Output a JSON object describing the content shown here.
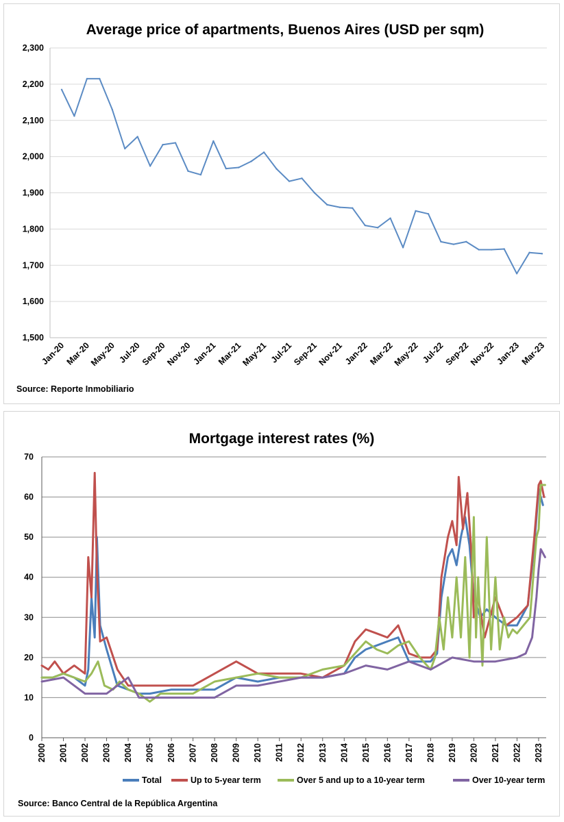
{
  "chart_data": [
    {
      "type": "line",
      "title": "Average price of apartments, Buenos Aires (USD per sqm)",
      "source": "Source: Reporte Inmobiliario",
      "ylim": [
        1500,
        2300
      ],
      "yticks": [
        "1,500",
        "1,600",
        "1,700",
        "1,800",
        "1,900",
        "2,000",
        "2,100",
        "2,200",
        "2,300"
      ],
      "ytick_values": [
        1500,
        1600,
        1700,
        1800,
        1900,
        2000,
        2100,
        2200,
        2300
      ],
      "xtick_labels": [
        "Jan-20",
        "Mar-20",
        "May-20",
        "Jul-20",
        "Sep-20",
        "Nov-20",
        "Jan-21",
        "Mar-21",
        "May-21",
        "Jul-21",
        "Sep-21",
        "Nov-21",
        "Jan-22",
        "Mar-22",
        "May-22",
        "Jul-22",
        "Sep-22",
        "Nov-22",
        "Jan-23",
        "Mar-23"
      ],
      "grid": true,
      "series": [
        {
          "name": "Average price",
          "color": "#5B8BC4",
          "x": [
            "Jan-20",
            "Feb-20",
            "Mar-20",
            "Apr-20",
            "May-20",
            "Jun-20",
            "Jul-20",
            "Aug-20",
            "Sep-20",
            "Oct-20",
            "Nov-20",
            "Dec-20",
            "Jan-21",
            "Feb-21",
            "Mar-21",
            "Apr-21",
            "May-21",
            "Jun-21",
            "Jul-21",
            "Aug-21",
            "Sep-21",
            "Oct-21",
            "Nov-21",
            "Dec-21",
            "Jan-22",
            "Feb-22",
            "Mar-22",
            "Apr-22",
            "May-22",
            "Jun-22",
            "Jul-22",
            "Aug-22",
            "Sep-22",
            "Oct-22",
            "Nov-22",
            "Dec-22",
            "Jan-23",
            "Feb-23",
            "Mar-23"
          ],
          "values": [
            2185,
            2112,
            2215,
            2215,
            2130,
            2022,
            2055,
            1974,
            2033,
            2038,
            1960,
            1950,
            2043,
            1967,
            1970,
            1987,
            2012,
            1966,
            1932,
            1940,
            1900,
            1867,
            1860,
            1858,
            1810,
            1804,
            1830,
            1749,
            1850,
            1842,
            1765,
            1758,
            1765,
            1743,
            1743,
            1745,
            1677,
            1735,
            1732
          ]
        }
      ]
    },
    {
      "type": "line",
      "title": "Mortgage interest rates (%)",
      "source": "Source: Banco Central de la República Argentina",
      "ylim": [
        0,
        70
      ],
      "yticks": [
        "0",
        "10",
        "20",
        "30",
        "40",
        "50",
        "60",
        "70"
      ],
      "ytick_values": [
        0,
        10,
        20,
        30,
        40,
        50,
        60,
        70
      ],
      "xtick_labels": [
        "2000",
        "2001",
        "2002",
        "2003",
        "2004",
        "2005",
        "2006",
        "2007",
        "2008",
        "2009",
        "2010",
        "2011",
        "2012",
        "2013",
        "2014",
        "2015",
        "2016",
        "2017",
        "2018",
        "2019",
        "2020",
        "2021",
        "2022",
        "2023"
      ],
      "xlim": [
        2000,
        2023.35
      ],
      "grid": true,
      "legend": "bottom",
      "series": [
        {
          "name": "Total",
          "color": "#4A7EBB",
          "x": [
            2000,
            2000.5,
            2001,
            2001.5,
            2002,
            2002.15,
            2002.3,
            2002.45,
            2002.55,
            2002.7,
            2003,
            2003.5,
            2004,
            2004.5,
            2005,
            2006,
            2007,
            2008,
            2009,
            2010,
            2011,
            2012,
            2013,
            2014,
            2014.5,
            2015,
            2015.5,
            2016,
            2016.5,
            2017,
            2017.5,
            2018,
            2018.3,
            2018.5,
            2018.8,
            2019,
            2019.2,
            2019.4,
            2019.6,
            2019.8,
            2020,
            2020.3,
            2020.6,
            2021,
            2021.5,
            2022,
            2022.5,
            2022.8,
            2023,
            2023.2
          ],
          "values": [
            15,
            15,
            16,
            15,
            13,
            17,
            35,
            25,
            50,
            28,
            22,
            13,
            12,
            11,
            11,
            12,
            12,
            12,
            15,
            14,
            15,
            15,
            15,
            16,
            20,
            22,
            23,
            24,
            25,
            19,
            19,
            19,
            21,
            35,
            45,
            47,
            43,
            50,
            55,
            48,
            35,
            30,
            32,
            30,
            28,
            28,
            33,
            48,
            62,
            58
          ]
        },
        {
          "name": "Up to 5-year term",
          "color": "#C0504D",
          "x": [
            2000,
            2000.3,
            2000.6,
            2001,
            2001.5,
            2002,
            2002.15,
            2002.3,
            2002.45,
            2002.55,
            2002.7,
            2003,
            2003.5,
            2004,
            2004.5,
            2005,
            2006,
            2007,
            2008,
            2009,
            2010,
            2011,
            2012,
            2013,
            2014,
            2014.5,
            2015,
            2015.5,
            2016,
            2016.5,
            2017,
            2017.5,
            2018,
            2018.3,
            2018.5,
            2018.8,
            2019,
            2019.2,
            2019.3,
            2019.5,
            2019.7,
            2019.9,
            2020,
            2020.2,
            2020.5,
            2021,
            2021.5,
            2022,
            2022.5,
            2022.8,
            2023,
            2023.1,
            2023.25
          ],
          "values": [
            18,
            17,
            19,
            16,
            18,
            16,
            45,
            35,
            66,
            42,
            24,
            25,
            17,
            13,
            13,
            13,
            13,
            13,
            16,
            19,
            16,
            16,
            16,
            15,
            18,
            24,
            27,
            26,
            25,
            28,
            21,
            20,
            20,
            22,
            40,
            50,
            54,
            48,
            65,
            52,
            61,
            45,
            30,
            35,
            25,
            35,
            28,
            30,
            33,
            50,
            63,
            64,
            60
          ]
        },
        {
          "name": "Over 5 and up to a 10-year term",
          "color": "#9BBB59",
          "x": [
            2000,
            2000.5,
            2001,
            2001.5,
            2002,
            2002.3,
            2002.6,
            2002.9,
            2003.3,
            2003.6,
            2004,
            2004.5,
            2005,
            2005.5,
            2006,
            2007,
            2008,
            2009,
            2010,
            2011,
            2012,
            2013,
            2014,
            2014.5,
            2015,
            2015.5,
            2016,
            2016.5,
            2017,
            2017.5,
            2018,
            2018.2,
            2018.4,
            2018.6,
            2018.8,
            2019,
            2019.2,
            2019.4,
            2019.6,
            2019.8,
            2020,
            2020.1,
            2020.2,
            2020.4,
            2020.6,
            2020.8,
            2021,
            2021.2,
            2021.4,
            2021.6,
            2021.8,
            2022,
            2022.3,
            2022.6,
            2022.9,
            2023,
            2023.1,
            2023.3
          ],
          "values": [
            15,
            15,
            16,
            15,
            14,
            16,
            19,
            13,
            12,
            14,
            12,
            11,
            9,
            11,
            11,
            11,
            14,
            15,
            16,
            15,
            15,
            17,
            18,
            21,
            24,
            22,
            21,
            23,
            24,
            20,
            17,
            20,
            30,
            22,
            35,
            25,
            40,
            25,
            45,
            20,
            55,
            25,
            40,
            18,
            50,
            22,
            40,
            22,
            30,
            25,
            27,
            26,
            28,
            30,
            50,
            52,
            63,
            63
          ]
        },
        {
          "name": "Over 10-year term",
          "color": "#8064A2",
          "x": [
            2000,
            2001,
            2002,
            2003,
            2004,
            2004.5,
            2005,
            2006,
            2007,
            2008,
            2009,
            2010,
            2011,
            2012,
            2013,
            2014,
            2015,
            2016,
            2017,
            2018,
            2019,
            2020,
            2021,
            2022,
            2022.4,
            2022.7,
            2022.9,
            2023,
            2023.1,
            2023.3
          ],
          "values": [
            14,
            15,
            11,
            11,
            15,
            10,
            10,
            10,
            10,
            10,
            13,
            13,
            14,
            15,
            15,
            16,
            18,
            17,
            19,
            17,
            20,
            19,
            19,
            20,
            21,
            25,
            35,
            42,
            47,
            45
          ]
        }
      ]
    }
  ]
}
